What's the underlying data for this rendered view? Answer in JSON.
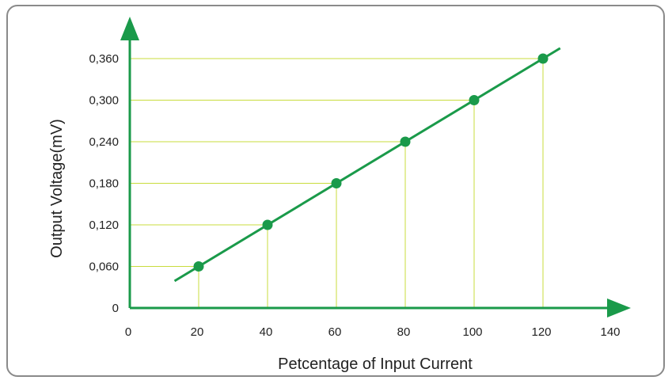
{
  "chart_data": {
    "type": "line",
    "title": "",
    "xlabel": "Petcentage of Input Current",
    "ylabel": "Output Voltage(mV)",
    "x_ticks": [
      "0",
      "20",
      "40",
      "60",
      "80",
      "100",
      "120",
      "140"
    ],
    "y_ticks": [
      "0",
      "0,060",
      "0,120",
      "0,180",
      "0,240",
      "0,300",
      "0,360"
    ],
    "xlim": [
      0,
      140
    ],
    "ylim": [
      0,
      0.42
    ],
    "series": [
      {
        "x": [
          20,
          40,
          60,
          80,
          100,
          120
        ],
        "y": [
          0.06,
          0.12,
          0.18,
          0.24,
          0.3,
          0.36
        ]
      }
    ],
    "grid": "guide lines from each point to both axes",
    "colors": {
      "line": "#1a9a4a",
      "marker": "#1a9a4a",
      "axis": "#1a9a4a",
      "guide": "#c8dc3c"
    }
  }
}
